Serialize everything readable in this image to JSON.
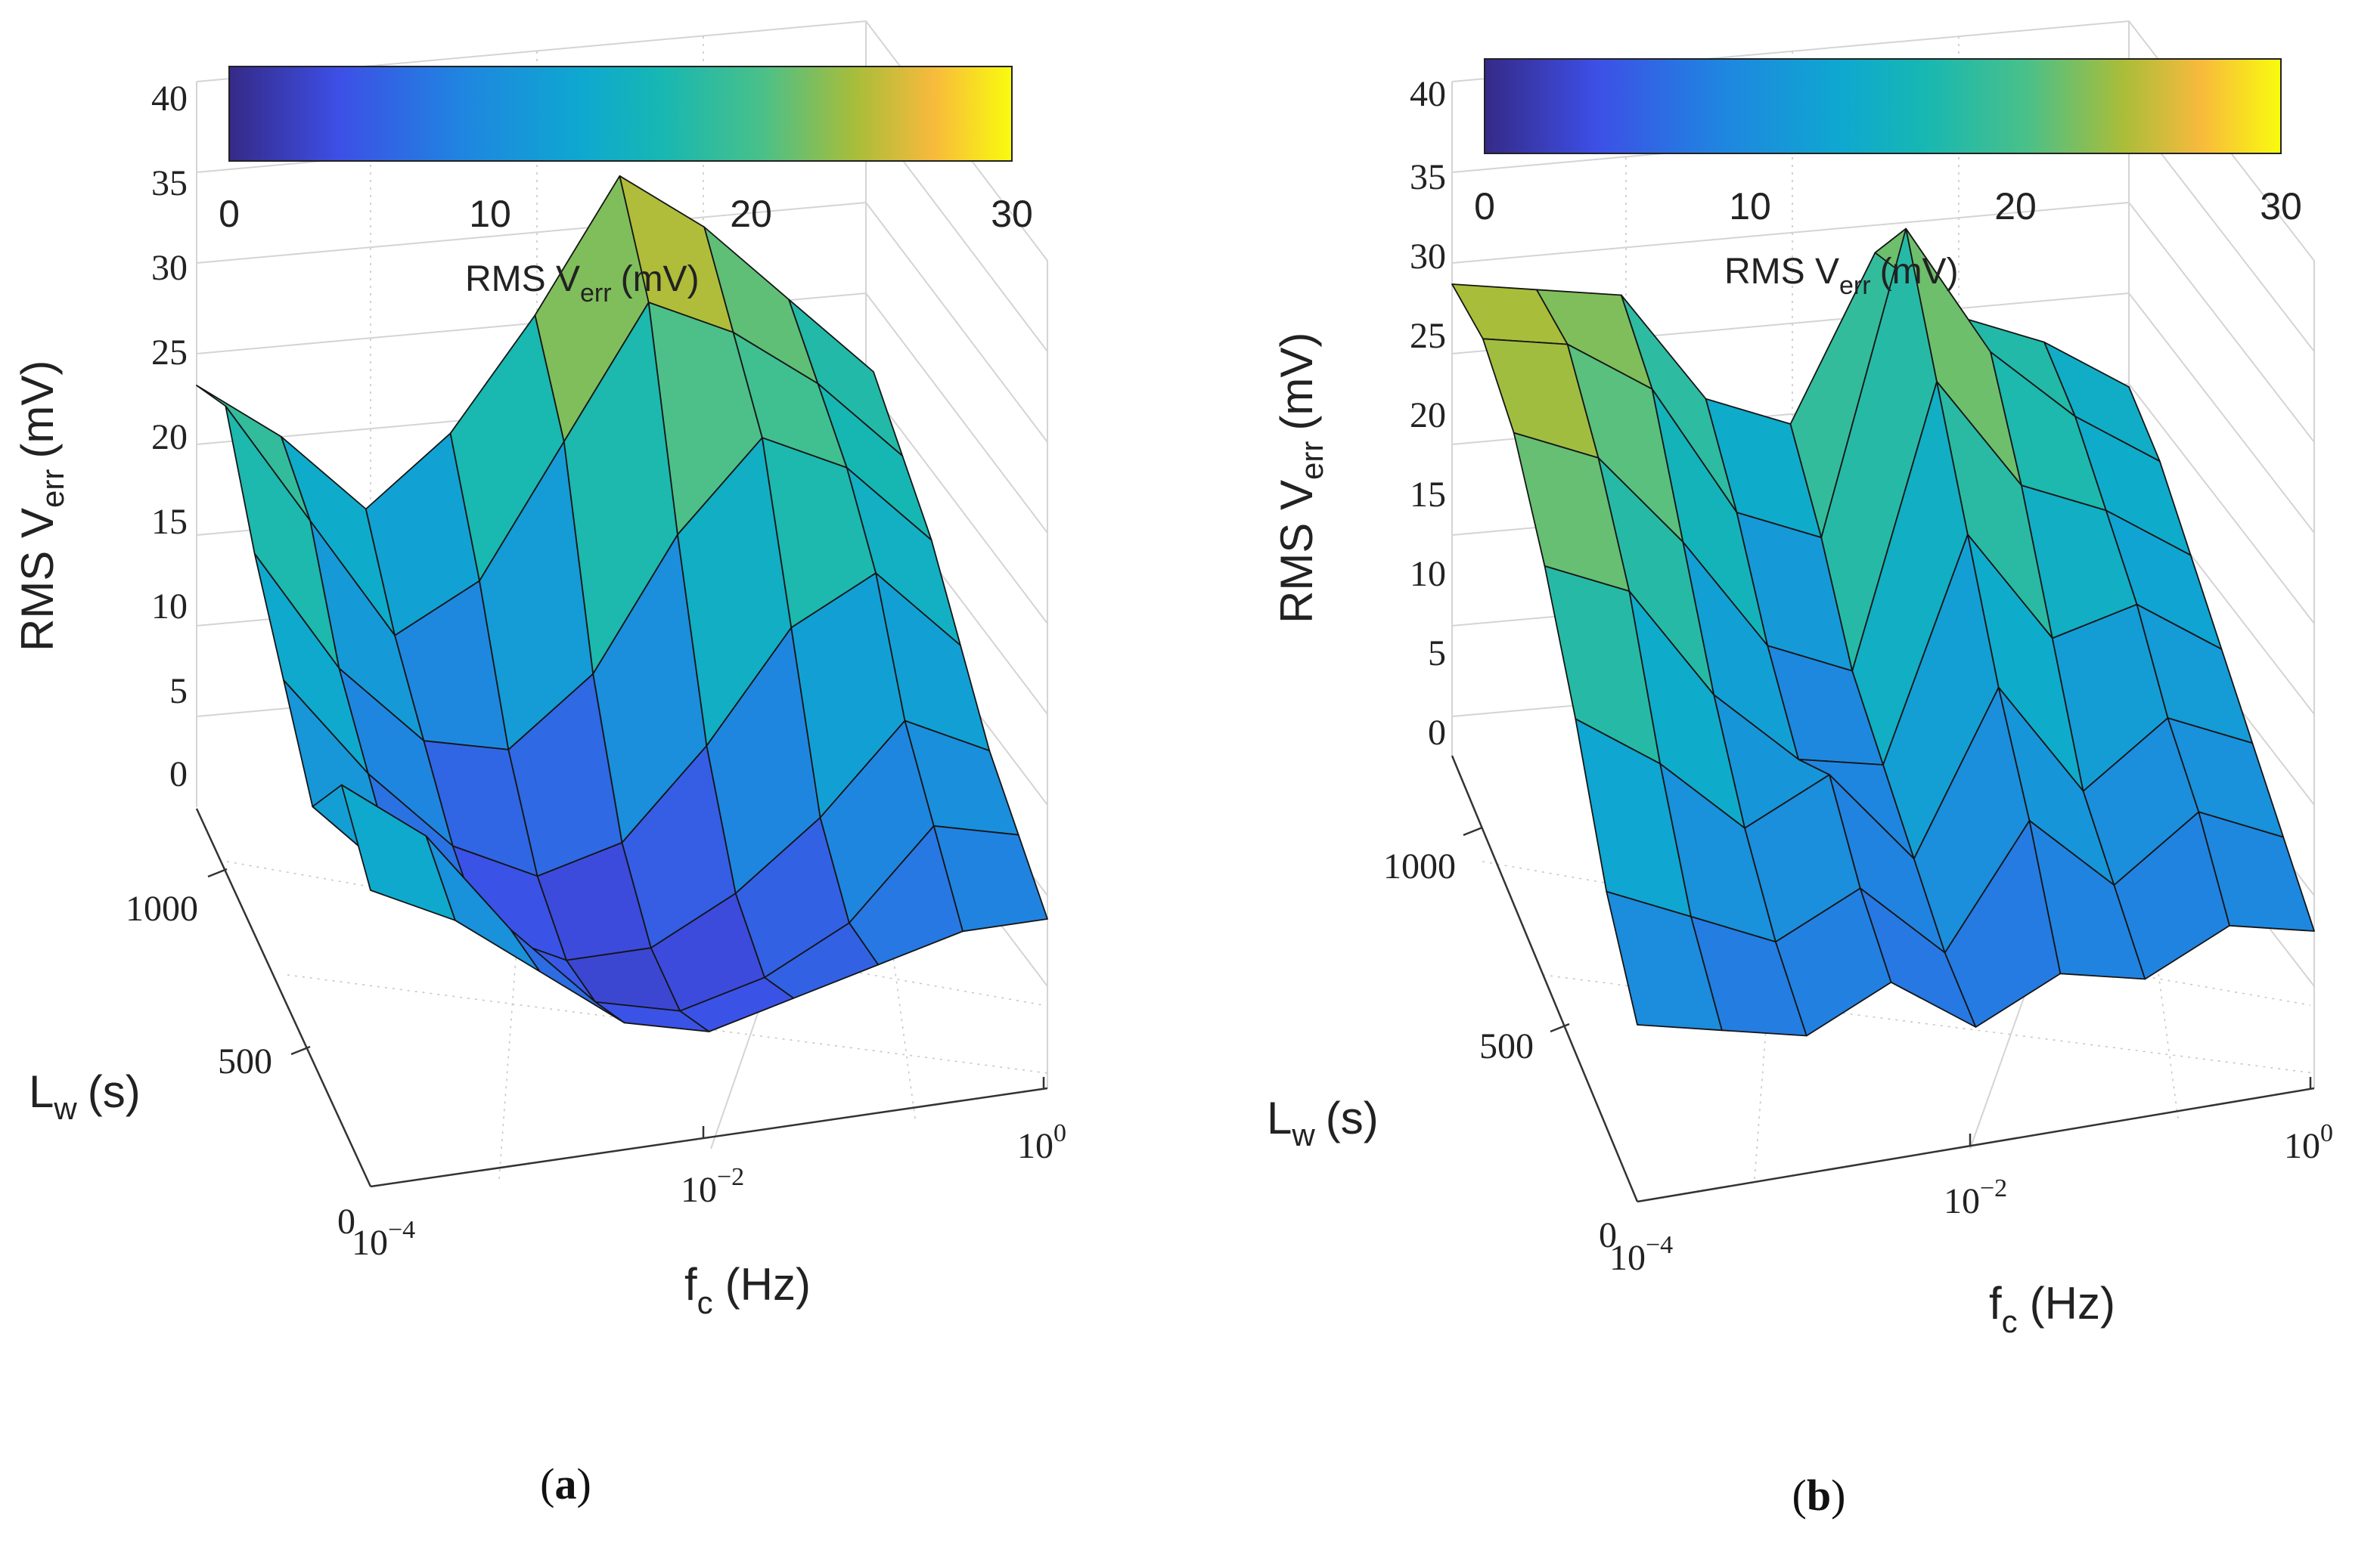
{
  "chart_data": [
    {
      "panel": "a",
      "panel_label_open": "(",
      "panel_label_letter": "a",
      "panel_label_close": ")",
      "type": "surface",
      "colormap": "parula",
      "x_label_main": "f",
      "x_label_sub": "c",
      "x_label_unit": "(Hz)",
      "x_scale": "log",
      "x_range": [
        0.0001,
        1
      ],
      "x_ticks": [
        {
          "base": "10",
          "exp": "−4"
        },
        {
          "base": "10",
          "exp": "−2"
        },
        {
          "base": "10",
          "exp": "0"
        }
      ],
      "y_label_main": "L",
      "y_label_sub": "w",
      "y_label_unit": "(s)",
      "y_range": [
        0,
        1200
      ],
      "y_ticks": [
        "0",
        "500",
        "1000"
      ],
      "z_label_main": "RMS V",
      "z_label_sub": "err",
      "z_label_unit": "(mV)",
      "z_range": [
        0,
        40
      ],
      "z_ticks": [
        "0",
        "5",
        "10",
        "15",
        "20",
        "25",
        "30",
        "35",
        "40"
      ],
      "colorbar_ticks": [
        "0",
        "10",
        "20",
        "30"
      ],
      "colorbar_range": [
        0,
        30
      ],
      "colorbar_label_main": "RMS V",
      "colorbar_label_sub": "err",
      "colorbar_label_unit": "(mV)",
      "grid": "on",
      "log_fc": [
        -4.0,
        -3.5,
        -3.0,
        -2.5,
        -2.0,
        -1.5,
        -1.0,
        -0.5,
        0.0
      ],
      "lw": [
        0,
        200,
        400,
        600,
        800,
        1000,
        1200
      ],
      "z": [
        [
          14,
          12,
          9,
          6,
          5,
          6,
          7,
          8,
          8
        ],
        [
          16,
          13,
          8,
          4,
          3,
          4,
          6,
          10,
          9
        ],
        [
          12,
          8,
          5,
          3,
          3,
          5,
          8,
          12,
          10
        ],
        [
          15,
          10,
          6,
          4,
          5,
          9,
          14,
          16,
          12
        ],
        [
          18,
          12,
          8,
          7,
          10,
          16,
          20,
          18,
          14
        ],
        [
          22,
          16,
          10,
          12,
          18,
          24,
          22,
          19,
          15
        ],
        [
          20,
          17,
          13,
          16,
          21,
          27,
          24,
          20,
          16
        ]
      ]
    },
    {
      "panel": "b",
      "panel_label_open": "(",
      "panel_label_letter": "b",
      "panel_label_close": ")",
      "type": "surface",
      "colormap": "parula",
      "x_label_main": "f",
      "x_label_sub": "c",
      "x_label_unit": "(Hz)",
      "x_scale": "log",
      "x_range": [
        0.0001,
        1
      ],
      "x_ticks": [
        {
          "base": "10",
          "exp": "−4"
        },
        {
          "base": "10",
          "exp": "−2"
        },
        {
          "base": "10",
          "exp": "0"
        }
      ],
      "y_label_main": "L",
      "y_label_sub": "w",
      "y_label_unit": "(s)",
      "y_range": [
        0,
        1200
      ],
      "y_ticks": [
        "0",
        "500",
        "1000"
      ],
      "z_label_main": "RMS V",
      "z_label_sub": "err",
      "z_label_unit": "(mV)",
      "z_range": [
        0,
        40
      ],
      "z_ticks": [
        "0",
        "5",
        "10",
        "15",
        "20",
        "25",
        "30",
        "35",
        "40"
      ],
      "colorbar_ticks": [
        "0",
        "10",
        "20",
        "30"
      ],
      "colorbar_range": [
        0,
        30
      ],
      "colorbar_label_main": "RMS V",
      "colorbar_label_sub": "err",
      "colorbar_label_unit": "(mV)",
      "grid": "on",
      "log_fc": [
        -4.0,
        -3.5,
        -3.0,
        -2.5,
        -2.0,
        -1.5,
        -1.0,
        -0.5,
        0.0
      ],
      "lw": [
        0,
        200,
        400,
        600,
        800,
        1000,
        1200
      ],
      "z": [
        [
          9,
          8,
          7,
          9,
          6,
          8,
          7,
          9,
          8
        ],
        [
          12,
          10,
          8,
          10,
          6,
          12,
          8,
          11,
          9
        ],
        [
          17,
          14,
          10,
          12,
          7,
          15,
          9,
          12,
          10
        ],
        [
          21,
          19,
          13,
          9,
          8,
          19,
          13,
          14,
          11
        ],
        [
          24,
          22,
          17,
          11,
          9,
          23,
          17,
          15,
          12
        ],
        [
          25,
          24,
          21,
          14,
          12,
          27,
          20,
          16,
          13
        ],
        [
          24,
          23,
          22,
          16,
          14,
          22,
          18,
          16,
          13
        ]
      ]
    }
  ]
}
